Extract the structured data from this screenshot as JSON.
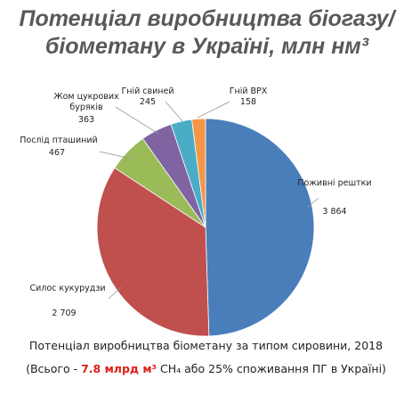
{
  "chart_data": {
    "type": "pie",
    "title": "Потенціал виробництва біогазу/ біометану в Україні, млн нм³",
    "categories": [
      "Поживні рештки",
      "Силос кукурудзи",
      "Послід пташиний",
      "Жом цукрових буряків",
      "Гній свиней",
      "Гній ВРХ"
    ],
    "values": [
      3864,
      2709,
      467,
      363,
      245,
      158
    ],
    "value_labels": [
      "3 864",
      "2 709",
      "467",
      "363",
      "245",
      "158"
    ],
    "colors": [
      "#4a7ebb",
      "#c0504d",
      "#9bbb59",
      "#8064a2",
      "#4bacc6",
      "#f79646"
    ],
    "subtitle": "Потенціал виробництва біометану за типом сировини, 2018",
    "note": {
      "prefix": "(Всього - ",
      "highlight": "7.8 млрд м³",
      "suffix": " CH₄ або 25% споживання ПГ в Україні)"
    }
  }
}
